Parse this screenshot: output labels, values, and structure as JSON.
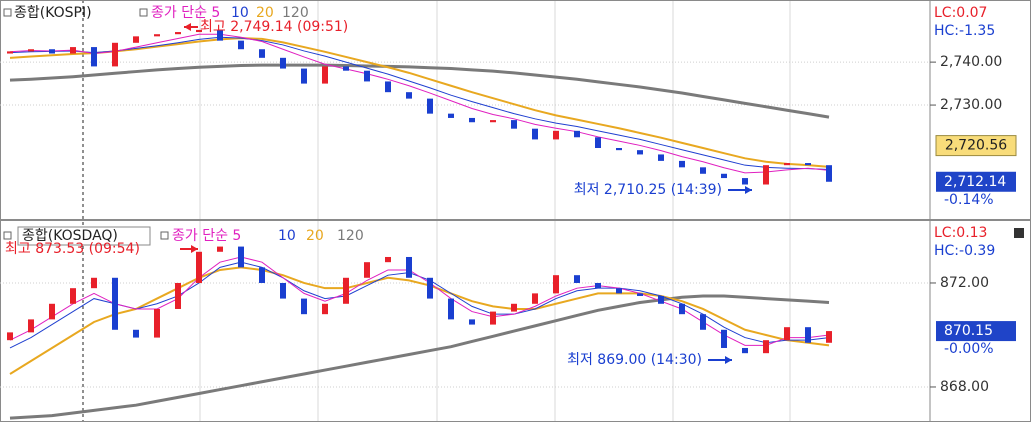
{
  "chart_data": [
    {
      "type": "candlestick",
      "title": "종합(KOSPI)",
      "candles": {
        "open": [
          2742.0,
          2742.5,
          2743.0,
          2742.0,
          2743.5,
          2739.0,
          2744.5,
          2746.0,
          2746.5,
          2747.0,
          2747.5,
          2745.0,
          2743.0,
          2741.0,
          2738.5,
          2735.0,
          2739.0,
          2738.0,
          2735.5,
          2733.0,
          2731.5,
          2728.0,
          2727.0,
          2726.0,
          2726.5,
          2724.5,
          2722.0,
          2724.0,
          2722.5,
          2720.0,
          2719.5,
          2718.5,
          2717.0,
          2715.5,
          2714.0,
          2713.0,
          2711.5,
          2716.0,
          2716.5,
          2716.0
        ],
        "close": [
          2742.5,
          2743.0,
          2742.0,
          2743.5,
          2739.0,
          2744.5,
          2746.0,
          2746.5,
          2747.0,
          2747.5,
          2745.0,
          2743.0,
          2741.0,
          2738.5,
          2735.0,
          2739.0,
          2738.0,
          2735.5,
          2733.0,
          2731.5,
          2728.0,
          2727.0,
          2726.0,
          2726.5,
          2724.5,
          2722.0,
          2724.0,
          2722.5,
          2720.0,
          2719.5,
          2718.5,
          2717.0,
          2715.5,
          2714.0,
          2713.0,
          2711.5,
          2716.0,
          2716.5,
          2716.0,
          2712.14
        ]
      },
      "series": [
        {
          "name": "종가 단순 5",
          "color": "#e020c0",
          "values": [
            2742.4,
            2742.7,
            2742.6,
            2742.8,
            2742.0,
            2742.5,
            2743.5,
            2744.5,
            2745.5,
            2746.5,
            2746.5,
            2745.8,
            2744.8,
            2743.0,
            2741.2,
            2739.5,
            2738.4,
            2737.3,
            2736.0,
            2734.5,
            2732.8,
            2731.0,
            2729.2,
            2727.8,
            2726.8,
            2725.5,
            2724.6,
            2723.8,
            2722.6,
            2721.6,
            2720.6,
            2719.4,
            2718.0,
            2716.8,
            2715.4,
            2714.2,
            2714.4,
            2714.9,
            2715.3,
            2714.8
          ]
        },
        {
          "name": "10",
          "color": "#2040d0",
          "values": [
            2742.2,
            2742.4,
            2742.5,
            2742.6,
            2742.2,
            2742.6,
            2743.2,
            2743.8,
            2744.5,
            2745.3,
            2745.8,
            2745.6,
            2745.0,
            2744.0,
            2742.6,
            2741.4,
            2740.0,
            2738.6,
            2737.2,
            2735.6,
            2734.0,
            2732.3,
            2730.8,
            2729.4,
            2728.0,
            2726.8,
            2725.8,
            2725.0,
            2724.0,
            2723.0,
            2722.0,
            2720.8,
            2719.6,
            2718.4,
            2717.2,
            2716.0,
            2715.5,
            2715.3,
            2715.2,
            2715.0
          ]
        },
        {
          "name": "20",
          "color": "#e8a820",
          "values": [
            2741.0,
            2741.3,
            2741.6,
            2741.9,
            2742.1,
            2742.5,
            2743.0,
            2743.6,
            2744.2,
            2744.8,
            2745.3,
            2745.6,
            2745.4,
            2744.6,
            2743.5,
            2742.4,
            2741.2,
            2740.0,
            2738.8,
            2737.5,
            2736.0,
            2734.5,
            2733.0,
            2731.6,
            2730.2,
            2728.8,
            2727.6,
            2726.6,
            2725.6,
            2724.6,
            2723.5,
            2722.4,
            2721.2,
            2720.0,
            2718.8,
            2717.6,
            2716.8,
            2716.3,
            2716.0,
            2715.6
          ]
        },
        {
          "name": "120",
          "color": "#7a7a7a",
          "values": [
            2735.8,
            2736.0,
            2736.3,
            2736.6,
            2737.0,
            2737.4,
            2737.8,
            2738.2,
            2738.5,
            2738.8,
            2739.0,
            2739.2,
            2739.3,
            2739.3,
            2739.3,
            2739.3,
            2739.2,
            2739.1,
            2739.0,
            2738.9,
            2738.7,
            2738.5,
            2738.2,
            2737.9,
            2737.5,
            2737.0,
            2736.5,
            2736.0,
            2735.4,
            2734.8,
            2734.2,
            2733.5,
            2732.8,
            2732.0,
            2731.2,
            2730.4,
            2729.6,
            2728.8,
            2728.0,
            2727.2
          ]
        }
      ],
      "ylim": [
        2704.4,
        2753.3
      ],
      "yticks": [
        {
          "value": 2740,
          "label": "2,740.00"
        },
        {
          "value": 2730,
          "label": "2,730.00"
        }
      ],
      "grid": true,
      "annotations": [
        "최고 2,749.14 (09:51)",
        "최저 2,710.25 (14:39)"
      ],
      "lc": "LC:0.07",
      "hc": "HC:-1.35",
      "price_marker": {
        "value": 2720.56,
        "label": "2,720.56"
      },
      "last_price": {
        "value": 2712.14,
        "label": "2,712.14"
      },
      "change": "-0.14%",
      "colors": {
        "up": "#e8202a",
        "down": "#1a3fd0"
      }
    },
    {
      "type": "candlestick",
      "title": "종합(KOSDAQ)",
      "candles": {
        "open": [
          869.8,
          870.1,
          870.6,
          871.2,
          871.8,
          872.2,
          870.2,
          869.9,
          871.0,
          872.0,
          873.2,
          873.4,
          872.6,
          872.0,
          871.4,
          870.8,
          871.2,
          872.2,
          872.8,
          873.0,
          872.2,
          871.4,
          870.6,
          870.4,
          870.9,
          871.2,
          871.6,
          872.3,
          872.0,
          871.8,
          871.6,
          871.5,
          871.2,
          870.8,
          870.2,
          869.5,
          869.3,
          869.8,
          870.3,
          869.7
        ],
        "close": [
          870.1,
          870.6,
          871.2,
          871.8,
          872.2,
          870.2,
          869.9,
          871.0,
          872.0,
          873.2,
          873.4,
          872.6,
          872.0,
          871.4,
          870.8,
          871.2,
          872.2,
          872.8,
          873.0,
          872.2,
          871.4,
          870.6,
          870.4,
          870.9,
          871.2,
          871.6,
          872.3,
          872.0,
          871.8,
          871.6,
          871.5,
          871.2,
          870.8,
          870.2,
          869.5,
          869.3,
          869.8,
          870.3,
          869.7,
          870.15
        ]
      },
      "series": [
        {
          "name": "종가 단순 5",
          "color": "#e020c0",
          "values": [
            869.8,
            870.2,
            870.7,
            871.2,
            871.6,
            871.2,
            871.0,
            871.0,
            871.4,
            872.2,
            872.8,
            873.0,
            872.8,
            872.2,
            871.6,
            871.3,
            871.6,
            872.1,
            872.5,
            872.5,
            872.0,
            871.4,
            870.9,
            870.7,
            870.8,
            871.1,
            871.5,
            871.8,
            871.9,
            871.8,
            871.6,
            871.3,
            871.0,
            870.5,
            870.0,
            869.6,
            869.6,
            869.9,
            869.9,
            870.0
          ]
        },
        {
          "name": "10",
          "color": "#2040d0",
          "values": [
            869.5,
            869.9,
            870.4,
            870.9,
            871.4,
            871.2,
            871.0,
            871.2,
            871.5,
            872.0,
            872.6,
            872.8,
            872.6,
            872.2,
            871.7,
            871.4,
            871.5,
            871.9,
            872.3,
            872.4,
            872.1,
            871.6,
            871.1,
            870.8,
            870.8,
            871.0,
            871.4,
            871.7,
            871.8,
            871.8,
            871.7,
            871.5,
            871.2,
            870.8,
            870.3,
            869.9,
            869.7,
            869.8,
            869.8,
            869.9
          ]
        },
        {
          "name": "20",
          "color": "#e8a820",
          "values": [
            868.5,
            869.0,
            869.5,
            870.0,
            870.5,
            870.8,
            871.0,
            871.4,
            871.8,
            872.2,
            872.5,
            872.6,
            872.5,
            872.3,
            872.0,
            871.8,
            871.8,
            872.0,
            872.2,
            872.1,
            871.9,
            871.6,
            871.3,
            871.1,
            871.0,
            871.0,
            871.2,
            871.4,
            871.6,
            871.6,
            871.6,
            871.5,
            871.3,
            871.0,
            870.6,
            870.2,
            870.0,
            869.8,
            869.7,
            869.6
          ]
        },
        {
          "name": "120",
          "color": "#7a7a7a",
          "values": [
            866.8,
            866.85,
            866.9,
            867.0,
            867.1,
            867.2,
            867.3,
            867.45,
            867.6,
            867.75,
            867.9,
            868.05,
            868.2,
            868.35,
            868.5,
            868.65,
            868.8,
            868.95,
            869.1,
            869.25,
            869.4,
            869.55,
            869.75,
            869.95,
            870.15,
            870.35,
            870.55,
            870.75,
            870.95,
            871.1,
            871.25,
            871.35,
            871.45,
            871.5,
            871.5,
            871.45,
            871.4,
            871.35,
            871.3,
            871.25
          ]
        }
      ],
      "ylim": [
        866.73,
        874.23
      ],
      "yticks": [
        {
          "value": 872,
          "label": "872.00"
        },
        {
          "value": 868,
          "label": "868.00"
        }
      ],
      "grid": true,
      "annotations": [
        "최고 873.53 (09:54)",
        "최저 869.00 (14:30)"
      ],
      "lc": "LC:0.13",
      "hc": "HC:-0.39",
      "last_price": {
        "value": 870.15,
        "label": "870.15"
      },
      "change": "-0.00%",
      "colors": {
        "up": "#e8202a",
        "down": "#1a3fd0"
      }
    }
  ]
}
